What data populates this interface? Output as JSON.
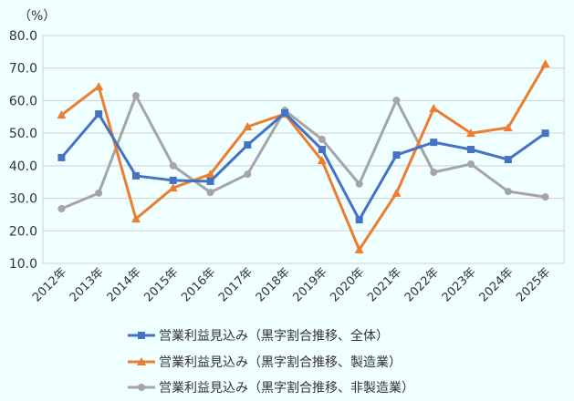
{
  "chart_data": {
    "type": "line",
    "title": "",
    "ylabel": "（%）",
    "xlabel": "",
    "ylim": [
      10,
      80
    ],
    "yticks": [
      "10.0",
      "20.0",
      "30.0",
      "40.0",
      "50.0",
      "60.0",
      "70.0",
      "80.0"
    ],
    "grid": true,
    "legend": "bottom",
    "categories": [
      "2012年",
      "2013年",
      "2014年",
      "2015年",
      "2016年",
      "2017年",
      "2018年",
      "2019年",
      "2020年",
      "2021年",
      "2022年",
      "2023年",
      "2024年",
      "2025年"
    ],
    "series": [
      {
        "name": "営業利益見込み（黒字割合推移、全体）",
        "color": "#4472c4",
        "marker": "square",
        "values": [
          42.5,
          55.9,
          36.9,
          35.5,
          35.2,
          46.4,
          56.2,
          45.0,
          23.4,
          43.3,
          47.2,
          45.0,
          41.9,
          50.0
        ]
      },
      {
        "name": "営業利益見込み（黒字割合推移、製造業）",
        "color": "#ed7d31",
        "marker": "triangle",
        "values": [
          55.6,
          64.3,
          23.7,
          33.2,
          37.4,
          52.0,
          55.9,
          41.6,
          14.2,
          31.6,
          57.6,
          50.0,
          51.7,
          71.3
        ]
      },
      {
        "name": "営業利益見込み（黒字割合推移、非製造業）",
        "color": "#a5a5a5",
        "marker": "circle",
        "values": [
          26.8,
          31.6,
          61.5,
          40.0,
          31.8,
          37.4,
          57.0,
          48.1,
          34.4,
          60.1,
          38.0,
          40.5,
          32.1,
          30.4
        ]
      }
    ]
  }
}
